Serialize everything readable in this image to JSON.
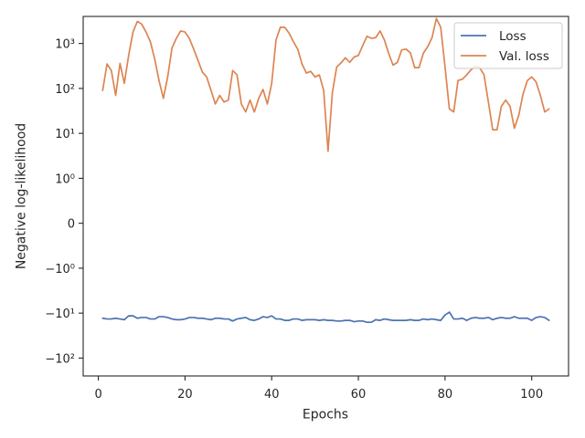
{
  "chart_data": {
    "type": "line",
    "title": "",
    "xlabel": "Epochs",
    "ylabel": "Negative log-likelihood",
    "yscale": "symlog",
    "xlim": [
      -3.5,
      108.5
    ],
    "ylim": [
      -250,
      4000
    ],
    "xticks": [
      0,
      20,
      40,
      60,
      80,
      100
    ],
    "xtick_labels": [
      "0",
      "20",
      "40",
      "60",
      "80",
      "100"
    ],
    "yticks": [
      -100,
      -10,
      -1,
      0,
      1,
      10,
      100,
      1000
    ],
    "ytick_labels": [
      "−10²",
      "−10¹",
      "−10⁰",
      "0",
      "10⁰",
      "10¹",
      "10²",
      "10³"
    ],
    "grid": false,
    "legend_position": "top-right",
    "series": [
      {
        "name": "Loss",
        "color": "#4c72b0",
        "x": [
          1,
          2,
          3,
          4,
          5,
          6,
          7,
          8,
          9,
          10,
          11,
          12,
          13,
          14,
          15,
          16,
          17,
          18,
          19,
          20,
          21,
          22,
          23,
          24,
          25,
          26,
          27,
          28,
          29,
          30,
          31,
          32,
          33,
          34,
          35,
          36,
          37,
          38,
          39,
          40,
          41,
          42,
          43,
          44,
          45,
          46,
          47,
          48,
          49,
          50,
          51,
          52,
          53,
          54,
          55,
          56,
          57,
          58,
          59,
          60,
          61,
          62,
          63,
          64,
          65,
          66,
          67,
          68,
          69,
          70,
          71,
          72,
          73,
          74,
          75,
          76,
          77,
          78,
          79,
          80,
          81,
          82,
          83,
          84,
          85,
          86,
          87,
          88,
          89,
          90,
          91,
          92,
          93,
          94,
          95,
          96,
          97,
          98,
          99,
          100,
          101,
          102,
          103,
          104
        ],
        "values": [
          -13,
          -13.5,
          -13.5,
          -13,
          -13.5,
          -14,
          -11.5,
          -11.5,
          -13,
          -12.5,
          -12.5,
          -13.5,
          -13.5,
          -12,
          -12,
          -12.5,
          -13.5,
          -14,
          -14,
          -13.5,
          -12.5,
          -12.5,
          -13,
          -13,
          -13.5,
          -14,
          -13,
          -13,
          -13.5,
          -13.5,
          -15,
          -13.5,
          -13,
          -12.5,
          -14,
          -14.5,
          -13.5,
          -12,
          -12.5,
          -11.5,
          -13.5,
          -13.5,
          -14.5,
          -14.5,
          -13.5,
          -13.5,
          -14.5,
          -14,
          -14,
          -14,
          -14.5,
          -14,
          -14.5,
          -14.5,
          -15,
          -15,
          -14.5,
          -14.5,
          -15.5,
          -15,
          -15,
          -16,
          -16,
          -14,
          -14.5,
          -13.5,
          -14,
          -14.5,
          -14.5,
          -14.5,
          -14.5,
          -14,
          -14.5,
          -14.5,
          -13.5,
          -14,
          -13.5,
          -14,
          -14.5,
          -11,
          -9.5,
          -13.5,
          -13.5,
          -13,
          -14.5,
          -13,
          -12.5,
          -13,
          -13,
          -12.5,
          -14,
          -13,
          -12.5,
          -13,
          -13,
          -12,
          -13,
          -13,
          -13,
          -14.5,
          -12.5,
          -12,
          -12.5,
          -14.5
        ]
      },
      {
        "name": "Val. loss",
        "color": "#dd8452",
        "x": [
          1,
          2,
          3,
          4,
          5,
          6,
          7,
          8,
          9,
          10,
          11,
          12,
          13,
          14,
          15,
          16,
          17,
          18,
          19,
          20,
          21,
          22,
          23,
          24,
          25,
          26,
          27,
          28,
          29,
          30,
          31,
          32,
          33,
          34,
          35,
          36,
          37,
          38,
          39,
          40,
          41,
          42,
          43,
          44,
          45,
          46,
          47,
          48,
          49,
          50,
          51,
          52,
          53,
          54,
          55,
          56,
          57,
          58,
          59,
          60,
          61,
          62,
          63,
          64,
          65,
          66,
          67,
          68,
          69,
          70,
          71,
          72,
          73,
          74,
          75,
          76,
          77,
          78,
          79,
          80,
          81,
          82,
          83,
          84,
          85,
          86,
          87,
          88,
          89,
          90,
          91,
          92,
          93,
          94,
          95,
          96,
          97,
          98,
          99,
          100,
          101,
          102,
          103,
          104
        ],
        "values": [
          90,
          350,
          250,
          70,
          360,
          130,
          550,
          1800,
          3100,
          2700,
          1800,
          1100,
          450,
          150,
          60,
          180,
          800,
          1300,
          1900,
          1800,
          1300,
          750,
          420,
          230,
          180,
          90,
          45,
          70,
          50,
          55,
          250,
          200,
          45,
          30,
          55,
          30,
          60,
          95,
          45,
          130,
          1200,
          2300,
          2300,
          1700,
          1100,
          750,
          350,
          220,
          240,
          180,
          200,
          90,
          4,
          80,
          300,
          370,
          480,
          380,
          500,
          540,
          900,
          1450,
          1300,
          1350,
          1900,
          1200,
          600,
          330,
          380,
          720,
          750,
          620,
          290,
          290,
          610,
          850,
          1350,
          3600,
          2300,
          300,
          35,
          30,
          150,
          160,
          200,
          260,
          310,
          290,
          200,
          50,
          12,
          12,
          40,
          55,
          40,
          13,
          25,
          75,
          150,
          180,
          140,
          70,
          30,
          35
        ]
      }
    ]
  }
}
